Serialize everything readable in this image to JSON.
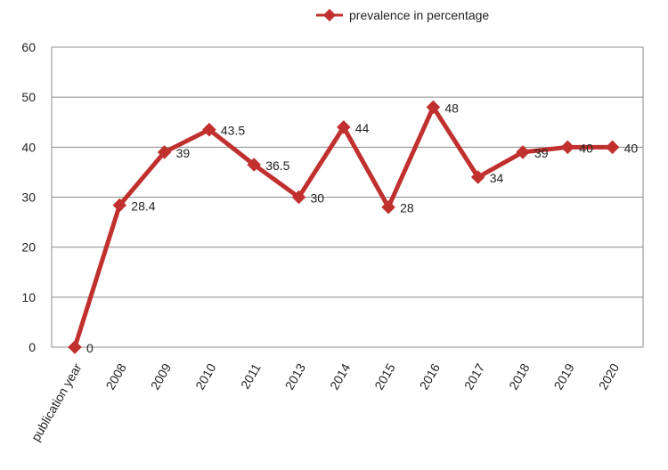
{
  "chart_data": {
    "type": "line",
    "title": "",
    "xlabel": "",
    "ylabel": "",
    "categories": [
      "publication year",
      "2008",
      "2009",
      "2010",
      "2011",
      "2013",
      "2014",
      "2015",
      "2016",
      "2017",
      "2018",
      "2019",
      "2020"
    ],
    "series": [
      {
        "name": "prevalence in percentage",
        "values": [
          0,
          28.4,
          39,
          43.5,
          36.5,
          30,
          44,
          28,
          48,
          34,
          39,
          40,
          40
        ],
        "labels": [
          "0",
          "28.4",
          "39",
          "43.5",
          "36.5",
          "30",
          "44",
          "28",
          "48",
          "34",
          "39",
          "40",
          "40"
        ],
        "color": "#c0302e"
      }
    ],
    "ylim": [
      0,
      60
    ],
    "yticks": [
      "0",
      "10",
      "20",
      "30",
      "40",
      "50",
      "60"
    ],
    "grid": true,
    "legend": "top-center"
  }
}
